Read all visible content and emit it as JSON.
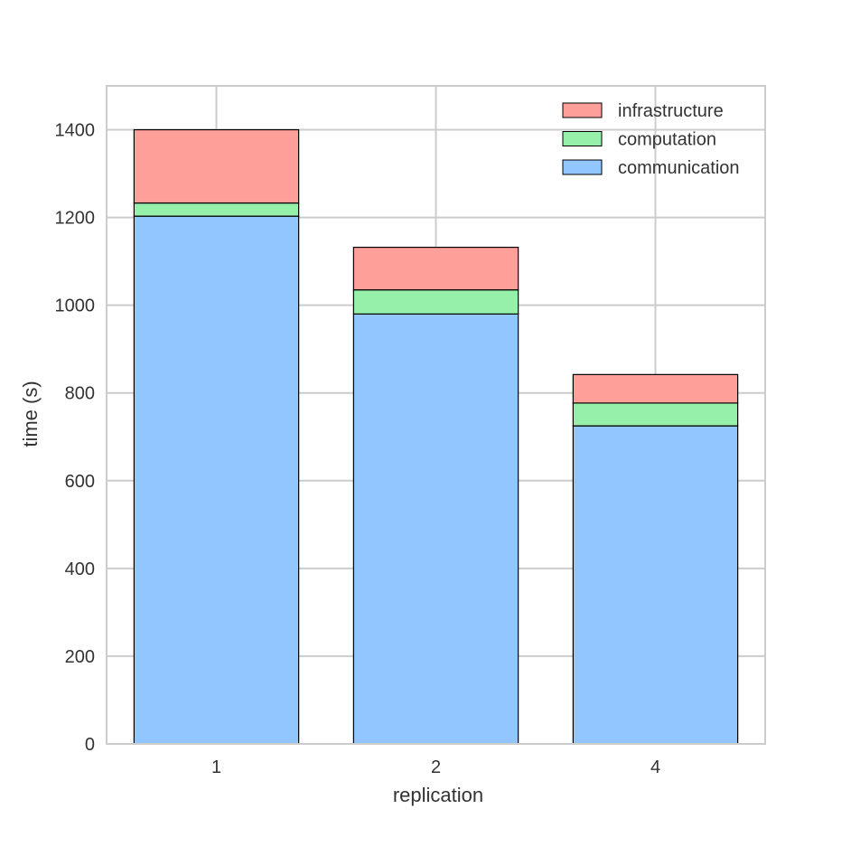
{
  "chart_data": {
    "type": "bar",
    "stacked": true,
    "title": "",
    "xlabel": "replication",
    "ylabel": "time (s)",
    "categories": [
      "1",
      "2",
      "4"
    ],
    "ylim": [
      0,
      1500
    ],
    "yticks": [
      0,
      200,
      400,
      600,
      800,
      1000,
      1200,
      1400
    ],
    "grid": true,
    "legend_position": "top-right",
    "series": [
      {
        "name": "communication",
        "color": "#92c6ff",
        "values": [
          1203,
          980,
          725
        ]
      },
      {
        "name": "computation",
        "color": "#97f0aa",
        "values": [
          30,
          55,
          52
        ]
      },
      {
        "name": "infrastructure",
        "color": "#ff9f9a",
        "values": [
          167,
          97,
          65
        ]
      }
    ],
    "legend_order": [
      "infrastructure",
      "computation",
      "communication"
    ]
  }
}
